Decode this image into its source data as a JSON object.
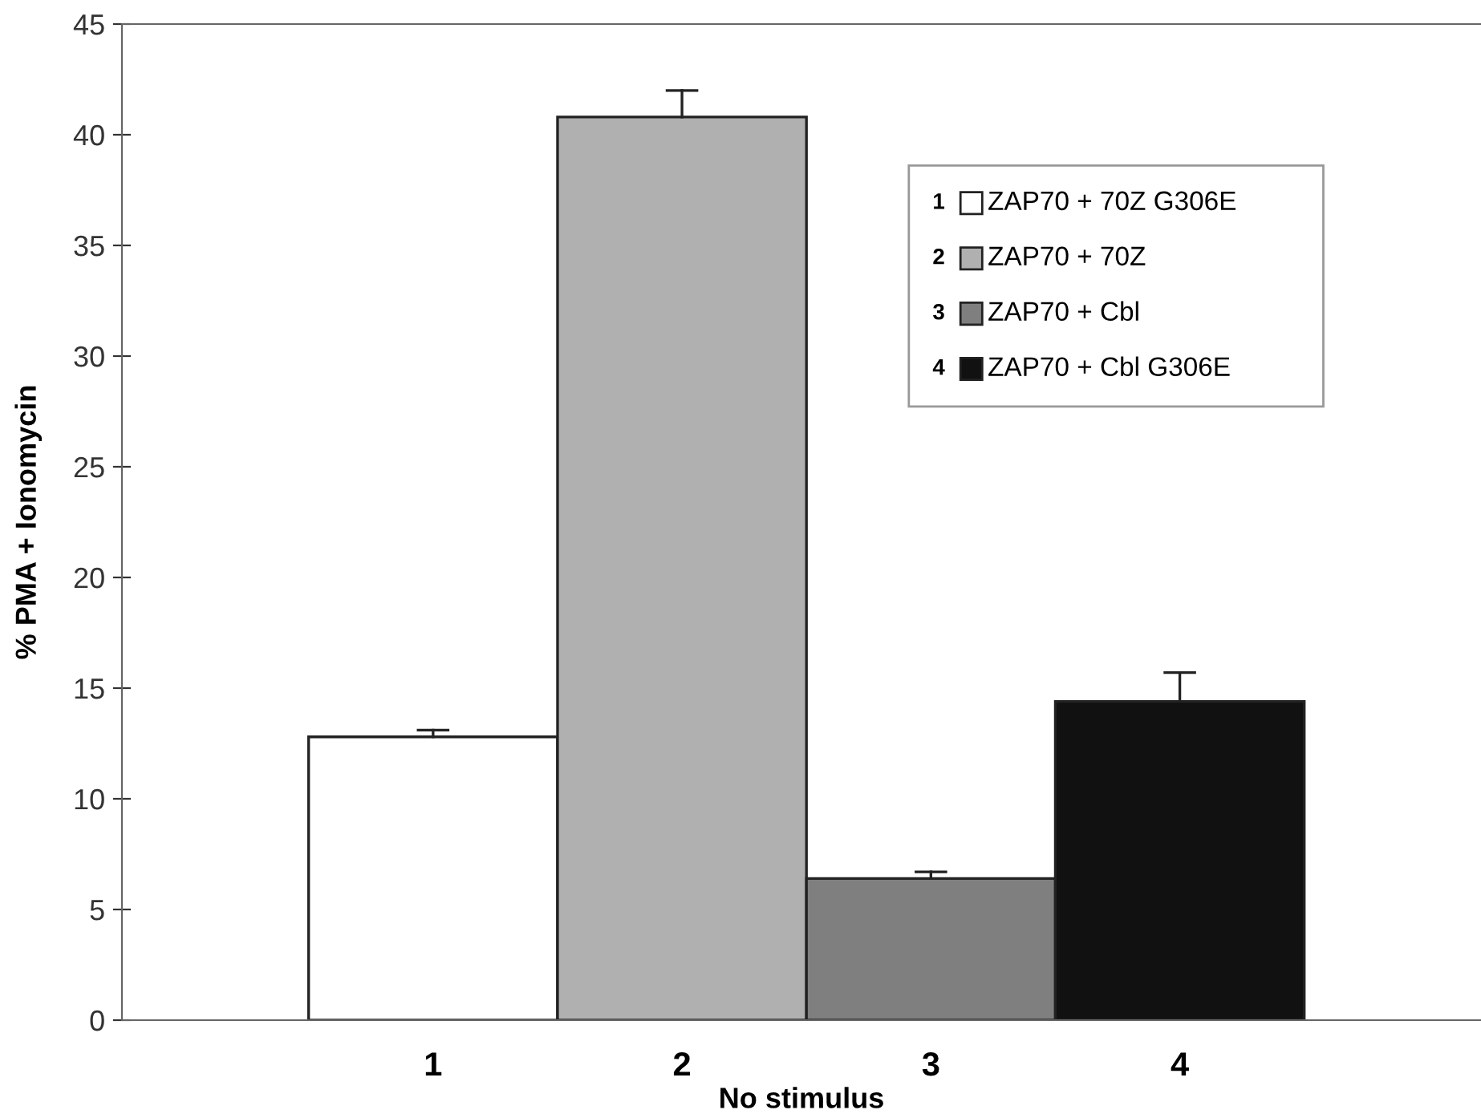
{
  "chart_data": {
    "type": "bar",
    "xlabel": "No stimulus",
    "ylabel": "% PMA + Ionomycin",
    "categories": [
      "1",
      "2",
      "3",
      "4"
    ],
    "series": [
      {
        "name": "ZAP70 + 70Z G306E",
        "color": "#ffffff",
        "values": [
          12.8,
          null,
          null,
          null
        ],
        "errors": [
          [
            12.8,
            13.1
          ],
          null,
          null,
          null
        ]
      },
      {
        "name": "ZAP70 + 70Z",
        "color": "#b0b0b0",
        "values": [
          null,
          40.8,
          null,
          null
        ],
        "errors": [
          null,
          [
            40.8,
            42.0
          ],
          null,
          null
        ]
      },
      {
        "name": "ZAP70 + Cbl",
        "color": "#7f7f7f",
        "values": [
          null,
          null,
          6.4,
          null
        ],
        "errors": [
          null,
          null,
          [
            6.4,
            6.7
          ],
          null
        ]
      },
      {
        "name": "ZAP70 + Cbl G306E",
        "color": "#111111",
        "values": [
          null,
          null,
          null,
          14.4
        ],
        "errors": [
          null,
          null,
          null,
          [
            14.4,
            15.7
          ]
        ]
      }
    ],
    "ylim": [
      0,
      45
    ],
    "yticks": [
      0,
      5,
      10,
      15,
      20,
      25,
      30,
      35,
      40,
      45
    ],
    "grid": false,
    "legend": "top right"
  }
}
